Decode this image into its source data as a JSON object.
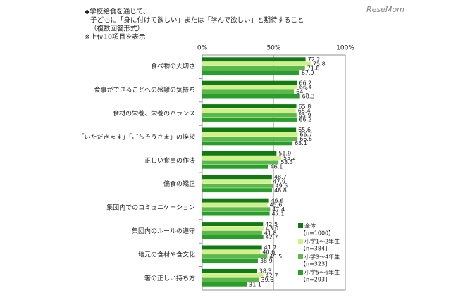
{
  "chart_data": {
    "type": "hbar",
    "title_lines": [
      "◆学校給食を通じて、",
      "子どもに「身に付けて欲しい」または「学んで欲しい」と期待すること",
      "（複数回答形式）",
      "※上位10項目を表示"
    ],
    "watermark": "ReseMom",
    "categories": [
      "食べ物の大切さ",
      "食事ができることへの感謝の気持ち",
      "食材の栄養、栄養のバランス",
      "「いただきます」「ごちそうさま」の挨拶",
      "正しい食事の作法",
      "偏食の矯正",
      "集団内でのコミュニケーション",
      "集団内のルールの遵守",
      "地元の食材や食文化",
      "箸の正しい持ち方"
    ],
    "series": [
      {
        "name": "全体",
        "n_label": "【n=1000】",
        "color": "#127a12",
        "values": [
          72.2,
          66.2,
          65.8,
          65.6,
          51.9,
          48.7,
          46.6,
          42.5,
          41.7,
          38.3
        ]
      },
      {
        "name": "小学1～2年生",
        "n_label": "【n=384】",
        "color": "#d2f08a",
        "values": [
          75.8,
          66.4,
          65.4,
          66.7,
          55.2,
          47.9,
          45.6,
          43.0,
          40.6,
          42.7
        ],
        "value_labels": [
          "75.8",
          "66.4",
          "65.4",
          "66.7",
          "55.2",
          "47.9",
          "45.6",
          "43.0",
          "40.6",
          "42.7"
        ]
      },
      {
        "name": "小学3～4年生",
        "n_label": "【n=323】",
        "color": "#5cb84a",
        "values": [
          71.8,
          64.1,
          65.9,
          66.6,
          53.3,
          49.5,
          47.4,
          41.8,
          45.5,
          39.6
        ]
      },
      {
        "name": "小学5～6年生",
        "n_label": "【n=293】",
        "color": "#2a9e2a",
        "values": [
          67.9,
          68.3,
          66.2,
          63.1,
          46.1,
          48.8,
          47.1,
          42.7,
          38.9,
          31.1
        ]
      }
    ],
    "xlim": [
      0,
      100
    ],
    "xticks": [
      {
        "value": 0,
        "label": "0%"
      },
      {
        "value": 50,
        "label": "50%"
      },
      {
        "value": 100,
        "label": "100%"
      }
    ],
    "grid": true
  }
}
